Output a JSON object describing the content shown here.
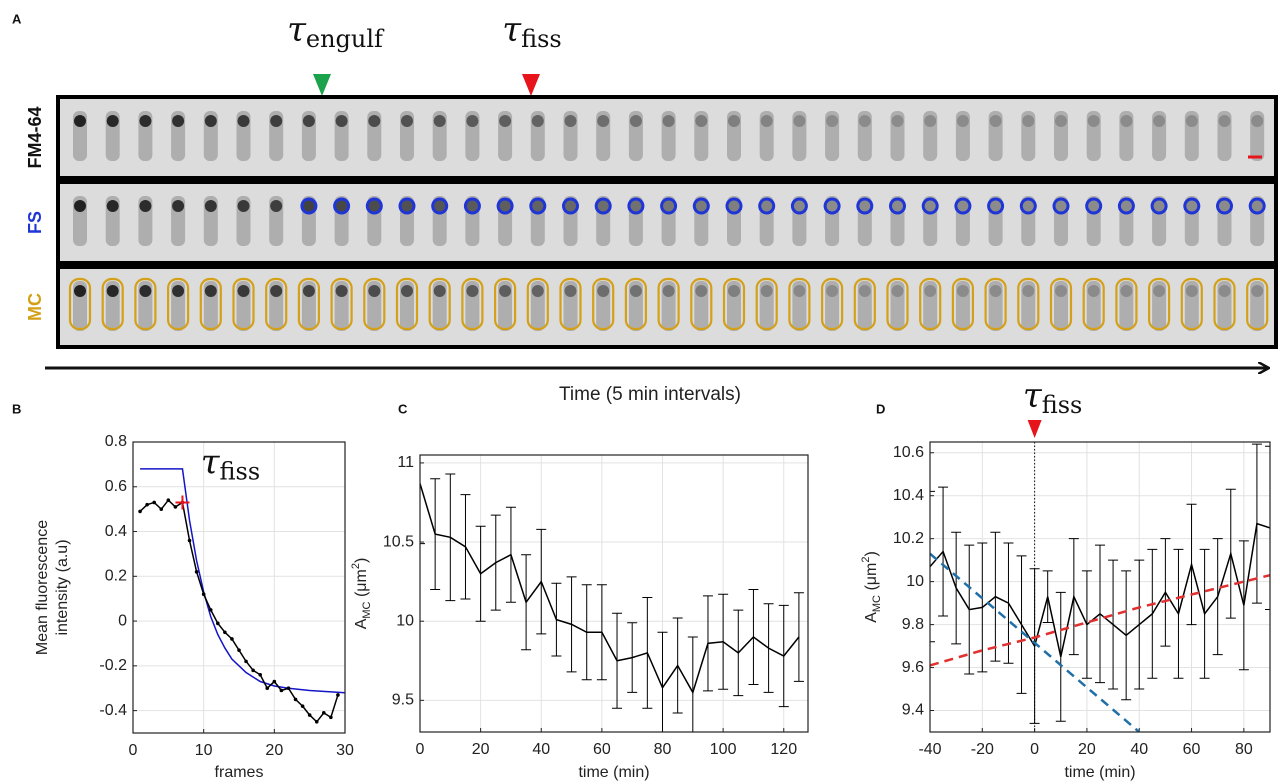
{
  "figure_a": {
    "label": "A",
    "axis_label": "Time (5 min intervals)",
    "markers": [
      {
        "symbol": "τ",
        "subscript": "engulf",
        "color": "#1aa34a"
      },
      {
        "symbol": "τ",
        "subscript": "fiss",
        "color": "#e8141b"
      }
    ],
    "rows": [
      {
        "label": "FM4-64",
        "color": "#111111"
      },
      {
        "label": "FS",
        "color": "#1f35d6"
      },
      {
        "label": "MC",
        "color": "#d4a017"
      }
    ]
  },
  "chart_data": [
    {
      "type": "line",
      "panel": "B",
      "xlabel": "frames",
      "ylabel": [
        "Mean fluorescence",
        "intensity (a.u)"
      ],
      "xlim": [
        0,
        30
      ],
      "xticks": [
        0,
        10,
        20,
        30
      ],
      "ylim": [
        -0.5,
        0.8
      ],
      "yticks": [
        -0.4,
        -0.2,
        0,
        0.2,
        0.4,
        0.6,
        0.8
      ],
      "grid": true,
      "series": [
        {
          "color": "#1414c8",
          "style": "line",
          "x": [
            1,
            7,
            8,
            9,
            10,
            11,
            12,
            13,
            14,
            15,
            16,
            18,
            20,
            22,
            25,
            30
          ],
          "values": [
            0.68,
            0.68,
            0.45,
            0.27,
            0.13,
            0.02,
            -0.06,
            -0.12,
            -0.17,
            -0.2,
            -0.23,
            -0.27,
            -0.29,
            -0.3,
            -0.31,
            -0.32
          ]
        },
        {
          "color": "#000000",
          "style": "line-dot",
          "x": [
            1,
            2,
            3,
            4,
            5,
            6,
            7,
            8,
            9,
            10,
            11,
            12,
            13,
            14,
            15,
            16,
            17,
            18,
            19,
            20,
            21,
            22,
            23,
            24,
            25,
            26,
            27,
            28,
            29
          ],
          "values": [
            0.49,
            0.52,
            0.53,
            0.5,
            0.54,
            0.51,
            0.53,
            0.36,
            0.22,
            0.12,
            0.05,
            -0.01,
            -0.05,
            -0.08,
            -0.13,
            -0.18,
            -0.22,
            -0.24,
            -0.3,
            -0.27,
            -0.31,
            -0.3,
            -0.35,
            -0.38,
            -0.42,
            -0.45,
            -0.41,
            -0.43,
            -0.33
          ]
        },
        {
          "color": "#e8141b",
          "style": "plus",
          "x": [
            7
          ],
          "values": [
            0.53
          ]
        }
      ],
      "annotation": {
        "symbol": "τ",
        "subscript": "fiss"
      }
    },
    {
      "type": "errorbar",
      "panel": "C",
      "xlabel": "time (min)",
      "ylabel": {
        "main": "A",
        "sub": "MC",
        "unit": " (μm",
        "sup": "2",
        "close": ")"
      },
      "xlim": [
        0,
        128
      ],
      "xticks": [
        0,
        20,
        40,
        60,
        80,
        100,
        120
      ],
      "ylim": [
        9.3,
        11.05
      ],
      "yticks": [
        9.5,
        10,
        10.5,
        11
      ],
      "grid": true,
      "series": [
        {
          "color": "#000000",
          "style": "line",
          "x": [
            0,
            5,
            10,
            15,
            20,
            25,
            30,
            35,
            40,
            45,
            50,
            55,
            60,
            65,
            70,
            75,
            80,
            85,
            90,
            95,
            100,
            105,
            110,
            115,
            120,
            125
          ],
          "values": [
            10.87,
            10.55,
            10.53,
            10.47,
            10.3,
            10.37,
            10.42,
            10.12,
            10.25,
            10.01,
            9.98,
            9.93,
            9.93,
            9.75,
            9.77,
            9.8,
            9.58,
            9.72,
            9.55,
            9.86,
            9.87,
            9.8,
            9.9,
            9.83,
            9.78,
            9.9
          ],
          "errors": [
            0.38,
            0.35,
            0.4,
            0.33,
            0.3,
            0.3,
            0.3,
            0.3,
            0.33,
            0.23,
            0.3,
            0.3,
            0.3,
            0.3,
            0.22,
            0.35,
            0.35,
            0.3,
            0.35,
            0.3,
            0.3,
            0.27,
            0.3,
            0.28,
            0.32,
            0.28
          ]
        }
      ]
    },
    {
      "type": "errorbar",
      "panel": "D",
      "xlabel": "time (min)",
      "ylabel": {
        "main": "A",
        "sub": "MC",
        "unit": " (μm",
        "sup": "2",
        "close": ")"
      },
      "xlim": [
        -40,
        90
      ],
      "xticks": [
        -40,
        -20,
        0,
        20,
        40,
        60,
        80
      ],
      "ylim": [
        9.3,
        10.65
      ],
      "yticks": [
        9.4,
        9.6,
        9.8,
        10,
        10.2,
        10.4,
        10.6
      ],
      "grid": true,
      "vline": 0,
      "annotation": {
        "symbol": "τ",
        "subscript": "fiss",
        "color": "#e8141b"
      },
      "series": [
        {
          "color": "#000000",
          "style": "line",
          "x": [
            -40,
            -35,
            -30,
            -25,
            -20,
            -15,
            -10,
            -5,
            0,
            5,
            10,
            15,
            20,
            25,
            30,
            35,
            40,
            45,
            50,
            55,
            60,
            65,
            70,
            75,
            80,
            85,
            90
          ],
          "values": [
            10.07,
            10.14,
            9.97,
            9.87,
            9.88,
            9.93,
            9.9,
            9.8,
            9.7,
            9.93,
            9.65,
            9.93,
            9.8,
            9.85,
            9.8,
            9.75,
            9.8,
            9.85,
            9.95,
            9.85,
            10.08,
            9.85,
            9.93,
            10.13,
            9.89,
            10.27,
            10.25
          ],
          "errors": [
            0.35,
            0.3,
            0.26,
            0.3,
            0.3,
            0.3,
            0.28,
            0.32,
            0.36,
            0.12,
            0.3,
            0.27,
            0.25,
            0.32,
            0.3,
            0.3,
            0.3,
            0.3,
            0.25,
            0.3,
            0.28,
            0.3,
            0.27,
            0.3,
            0.3,
            0.37,
            0.38
          ]
        },
        {
          "color": "#e03030",
          "style": "dash",
          "x": [
            -40,
            -20,
            0,
            20,
            40,
            60,
            90
          ],
          "values": [
            9.61,
            9.68,
            9.74,
            9.81,
            9.88,
            9.94,
            10.03
          ]
        },
        {
          "color": "#1f6fa8",
          "style": "dash",
          "x": [
            -40,
            40
          ],
          "values": [
            10.13,
            9.3
          ]
        }
      ]
    }
  ]
}
